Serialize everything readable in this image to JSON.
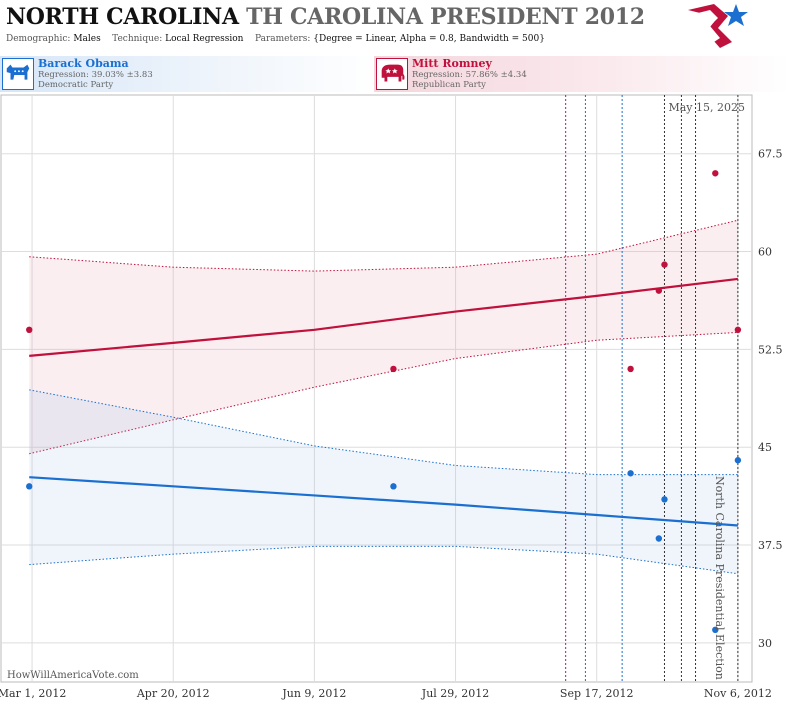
{
  "header": {
    "title_main": "NORTH CAROLINA",
    "title_sub": "TH CAROLINA PRESIDENT 2012",
    "demographic_label": "Demographic:",
    "demographic_value": "Males",
    "technique_label": "Technique:",
    "technique_value": "Local Regression",
    "parameters_label": "Parameters:",
    "parameters_value": "{Degree = Linear, Alpha = 0.8, Bandwidth = 500}"
  },
  "candidates": {
    "dem": {
      "name": "Barack Obama",
      "regression": "Regression: 39.03% ±3.83",
      "party": "Democratic Party",
      "color": "#1a6fd0"
    },
    "rep": {
      "name": "Mitt Romney",
      "regression": "Regression: 57.86% ±4.34",
      "party": "Republican Party",
      "color": "#c0103c"
    }
  },
  "annotations": {
    "date": "May 15, 2025",
    "vertical_label": "North Carolina Presidential Election",
    "watermark": "HowWillAmericaVote.com"
  },
  "chart_data": {
    "type": "scatter",
    "x_axis": {
      "ticks": [
        "Mar 1, 2012",
        "Apr 20, 2012",
        "Jun 9, 2012",
        "Jul 29, 2012",
        "Sep 17, 2012",
        "Nov 6, 2012"
      ],
      "range": [
        "2012-02-19",
        "2012-11-11"
      ]
    },
    "y_axis": {
      "ticks": [
        30,
        37.5,
        45,
        52.5,
        60,
        67.5
      ],
      "range": [
        27,
        72
      ],
      "position": "right"
    },
    "grid": true,
    "vertical_event_lines": [
      {
        "date": "2012-09-06",
        "color": "#8a2a8a"
      },
      {
        "date": "2012-09-13",
        "color": "#1a6fd0"
      },
      {
        "date": "2012-09-26",
        "color": "#1a6fd0"
      },
      {
        "date": "2012-10-11",
        "color": "#333333"
      },
      {
        "date": "2012-10-17",
        "color": "#333333"
      },
      {
        "date": "2012-10-22",
        "color": "#333333"
      },
      {
        "date": "2012-11-06",
        "color": "#333333"
      }
    ],
    "series": [
      {
        "name": "Mitt Romney",
        "color": "#c0103c",
        "points": [
          {
            "x": "2012-02-29",
            "y": 54
          },
          {
            "x": "2012-07-07",
            "y": 51
          },
          {
            "x": "2012-09-29",
            "y": 51
          },
          {
            "x": "2012-10-09",
            "y": 57
          },
          {
            "x": "2012-10-11",
            "y": 59
          },
          {
            "x": "2012-10-29",
            "y": 66
          },
          {
            "x": "2012-11-06",
            "y": 54
          }
        ],
        "trend": {
          "x": [
            "2012-02-29",
            "2012-04-20",
            "2012-06-09",
            "2012-07-29",
            "2012-09-17",
            "2012-11-06"
          ],
          "y": [
            52.0,
            53.0,
            54.0,
            55.4,
            56.6,
            57.9
          ],
          "upper": [
            59.6,
            58.8,
            58.5,
            58.8,
            59.8,
            62.4
          ],
          "lower": [
            44.5,
            47.1,
            49.6,
            51.8,
            53.2,
            53.8
          ]
        }
      },
      {
        "name": "Barack Obama",
        "color": "#1a6fd0",
        "points": [
          {
            "x": "2012-02-29",
            "y": 42
          },
          {
            "x": "2012-07-07",
            "y": 42
          },
          {
            "x": "2012-09-29",
            "y": 43
          },
          {
            "x": "2012-10-09",
            "y": 38
          },
          {
            "x": "2012-10-11",
            "y": 41
          },
          {
            "x": "2012-10-29",
            "y": 31
          },
          {
            "x": "2012-11-06",
            "y": 44
          }
        ],
        "trend": {
          "x": [
            "2012-02-29",
            "2012-04-20",
            "2012-06-09",
            "2012-07-29",
            "2012-09-17",
            "2012-11-06"
          ],
          "y": [
            42.7,
            42.0,
            41.3,
            40.6,
            39.8,
            39.0
          ],
          "upper": [
            49.4,
            47.3,
            45.1,
            43.6,
            42.9,
            42.9
          ],
          "lower": [
            36.0,
            36.8,
            37.4,
            37.4,
            36.8,
            35.3
          ]
        }
      }
    ]
  }
}
